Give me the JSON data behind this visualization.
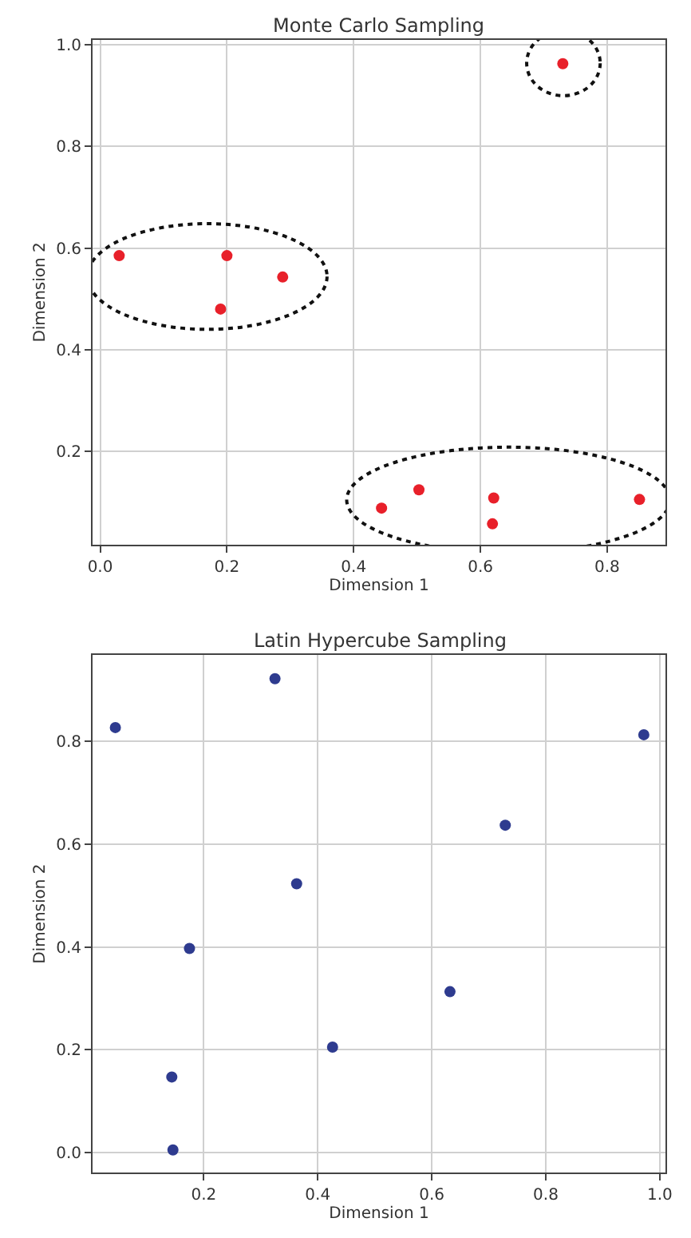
{
  "chart_data": [
    {
      "type": "scatter",
      "title": "Monte Carlo Sampling",
      "xlabel": "Dimension 1",
      "ylabel": "Dimension 2",
      "x": [
        0.03,
        0.2,
        0.19,
        0.288,
        0.73,
        0.444,
        0.503,
        0.621,
        0.619,
        0.851
      ],
      "series": [
        {
          "color": "#e8202a",
          "values": [
            0.585,
            0.585,
            0.48,
            0.543,
            0.963,
            0.088,
            0.124,
            0.108,
            0.057,
            0.105
          ]
        }
      ],
      "xlim": [
        -0.012,
        0.892
      ],
      "ylim": [
        0.016,
        1.01
      ],
      "xticks": [
        {
          "value": 0,
          "label": "0.0"
        },
        0.2,
        0.4,
        0.6,
        0.8
      ],
      "yticks": [
        0.2,
        0.4,
        0.6,
        0.8,
        {
          "value": 1,
          "label": "1.0"
        }
      ],
      "grid": true,
      "marker": "circle"
    },
    {
      "type": "scatter",
      "title": "Latin Hypercube Sampling",
      "xlabel": "Dimension 1",
      "ylabel": "Dimension 2",
      "x": [
        0.045,
        0.325,
        0.972,
        0.729,
        0.363,
        0.175,
        0.632,
        0.426,
        0.144,
        0.146
      ],
      "series": [
        {
          "color": "#2e3b8f",
          "values": [
            0.827,
            0.922,
            0.813,
            0.637,
            0.523,
            0.397,
            0.313,
            0.205,
            0.147,
            0.005
          ]
        }
      ],
      "xlim": [
        0.005,
        1.01
      ],
      "ylim": [
        -0.039,
        0.968
      ],
      "xticks": [
        0.2,
        0.4,
        0.6,
        0.8,
        {
          "value": 1,
          "label": "1.0"
        }
      ],
      "yticks": [
        {
          "value": 0,
          "label": "0.0"
        },
        0.2,
        0.4,
        0.6,
        0.8
      ],
      "grid": true,
      "marker": "circle"
    }
  ]
}
